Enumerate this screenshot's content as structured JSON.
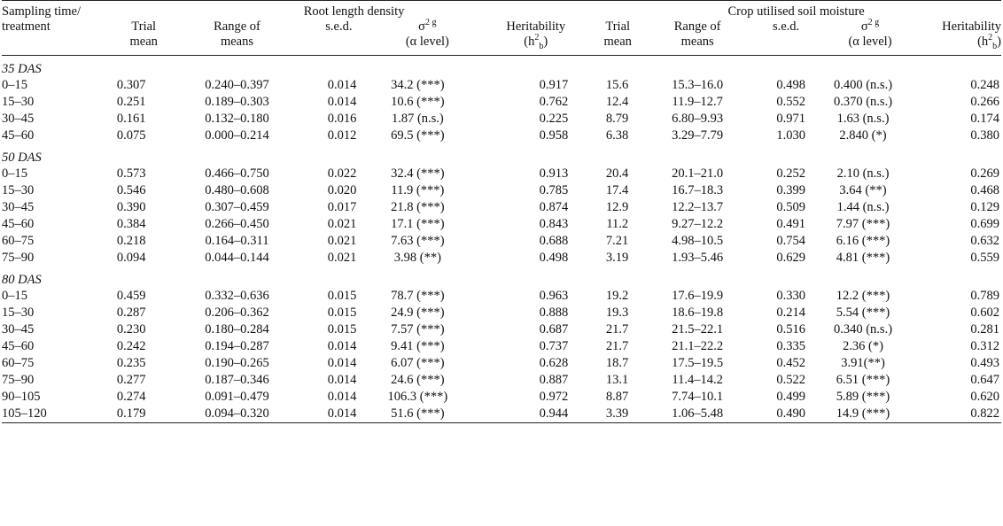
{
  "columns": {
    "sampling": "Sampling time/",
    "treatment": "treatment",
    "rld_group": "Root length density",
    "csm_group": "Crop utilised soil moisture",
    "trial_l1": "Trial",
    "trial_l2": "mean",
    "range_l1": "Range of",
    "range_l2": "means",
    "sed": "s.e.d.",
    "sigma": "σ",
    "sigma_sup": "2 g",
    "alpha": "(α level)",
    "herit_l1": "Heritability",
    "herit_h": "(h",
    "herit_sup": "2",
    "herit_sub": "b",
    "herit_close": ")"
  },
  "sections": [
    {
      "label": "35 DAS",
      "rows": [
        [
          "0–15",
          "0.307",
          "0.240–0.397",
          "0.014",
          "34.2 (***)",
          "0.917",
          "15.6",
          "15.3–16.0",
          "0.498",
          "0.400 (n.s.)",
          "0.248"
        ],
        [
          "15–30",
          "0.251",
          "0.189–0.303",
          "0.014",
          "10.6 (***)",
          "0.762",
          "12.4",
          "11.9–12.7",
          "0.552",
          "0.370 (n.s.)",
          "0.266"
        ],
        [
          "30–45",
          "0.161",
          "0.132–0.180",
          "0.016",
          "1.87 (n.s.)",
          "0.225",
          "8.79",
          "6.80–9.93",
          "0.971",
          "1.63 (n.s.)",
          "0.174"
        ],
        [
          "45–60",
          "0.075",
          "0.000–0.214",
          "0.012",
          "69.5 (***)",
          "0.958",
          "6.38",
          "3.29–7.79",
          "1.030",
          "2.840 (*)",
          "0.380"
        ]
      ]
    },
    {
      "label": "50 DAS",
      "rows": [
        [
          "0–15",
          "0.573",
          "0.466–0.750",
          "0.022",
          "32.4 (***)",
          "0.913",
          "20.4",
          "20.1–21.0",
          "0.252",
          "2.10 (n.s.)",
          "0.269"
        ],
        [
          "15–30",
          "0.546",
          "0.480–0.608",
          "0.020",
          "11.9 (***)",
          "0.785",
          "17.4",
          "16.7–18.3",
          "0.399",
          "3.64 (**)",
          "0.468"
        ],
        [
          "30–45",
          "0.390",
          "0.307–0.459",
          "0.017",
          "21.8 (***)",
          "0.874",
          "12.9",
          "12.2–13.7",
          "0.509",
          "1.44 (n.s.)",
          "0.129"
        ],
        [
          "45–60",
          "0.384",
          "0.266–0.450",
          "0.021",
          "17.1 (***)",
          "0.843",
          "11.2",
          "9.27–12.2",
          "0.491",
          "7.97 (***)",
          "0.699"
        ],
        [
          "60–75",
          "0.218",
          "0.164–0.311",
          "0.021",
          "7.63 (***)",
          "0.688",
          "7.21",
          "4.98–10.5",
          "0.754",
          "6.16 (***)",
          "0.632"
        ],
        [
          "75–90",
          "0.094",
          "0.044–0.144",
          "0.021",
          "3.98 (**)",
          "0.498",
          "3.19",
          "1.93–5.46",
          "0.629",
          "4.81 (***)",
          "0.559"
        ]
      ]
    },
    {
      "label": "80 DAS",
      "rows": [
        [
          "0–15",
          "0.459",
          "0.332–0.636",
          "0.015",
          "78.7 (***)",
          "0.963",
          "19.2",
          "17.6–19.9",
          "0.330",
          "12.2 (***)",
          "0.789"
        ],
        [
          "15–30",
          "0.287",
          "0.206–0.362",
          "0.015",
          "24.9 (***)",
          "0.888",
          "19.3",
          "18.6–19.8",
          "0.214",
          "5.54 (***)",
          "0.602"
        ],
        [
          "30–45",
          "0.230",
          "0.180–0.284",
          "0.015",
          "7.57 (***)",
          "0.687",
          "21.7",
          "21.5–22.1",
          "0.516",
          "0.340 (n.s.)",
          "0.281"
        ],
        [
          "45–60",
          "0.242",
          "0.194–0.287",
          "0.014",
          "9.41 (***)",
          "0.737",
          "21.7",
          "21.1–22.2",
          "0.335",
          "2.36 (*)",
          "0.312"
        ],
        [
          "60–75",
          "0.235",
          "0.190–0.265",
          "0.014",
          "6.07 (***)",
          "0.628",
          "18.7",
          "17.5–19.5",
          "0.452",
          "3.91(**)",
          "0.493"
        ],
        [
          "75–90",
          "0.277",
          "0.187–0.346",
          "0.014",
          "24.6 (***)",
          "0.887",
          "13.1",
          "11.4–14.2",
          "0.522",
          "6.51 (***)",
          "0.647"
        ],
        [
          "90–105",
          "0.274",
          "0.091–0.479",
          "0.014",
          "106.3 (***)",
          "0.972",
          "8.87",
          "7.74–10.1",
          "0.499",
          "5.89 (***)",
          "0.620"
        ],
        [
          "105–120",
          "0.179",
          "0.094–0.320",
          "0.014",
          "51.6 (***)",
          "0.944",
          "3.39",
          "1.06–5.48",
          "0.490",
          "14.9 (***)",
          "0.822"
        ]
      ]
    }
  ]
}
